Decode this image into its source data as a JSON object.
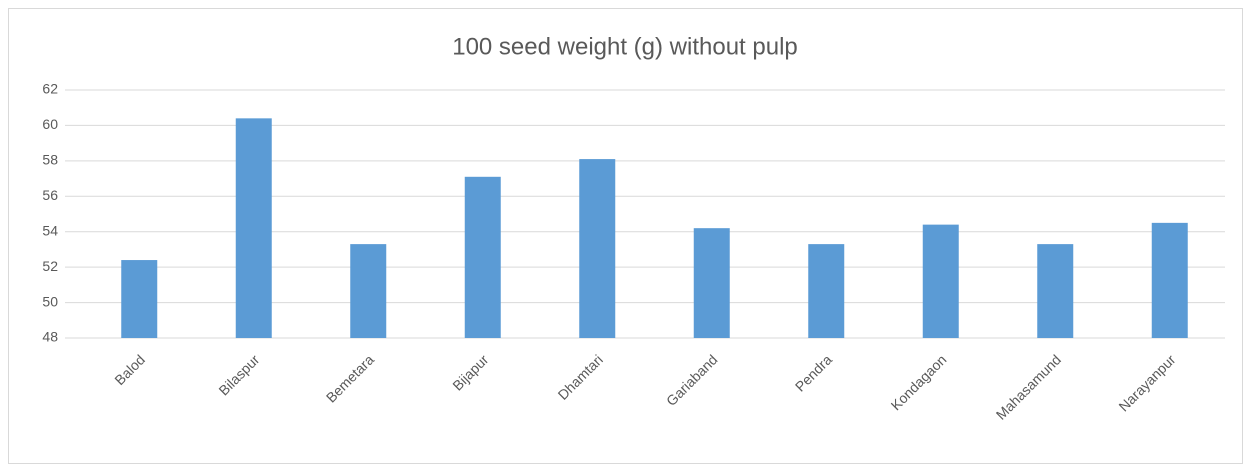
{
  "chart_data": {
    "type": "bar",
    "title": "100 seed weight (g) without pulp",
    "categories": [
      "Balod",
      "Bilaspur",
      "Bemetara",
      "Bijapur",
      "Dhamtari",
      "Gariaband",
      "Pendra",
      "Kondagaon",
      "Mahasamund",
      "Narayanpur"
    ],
    "values": [
      52.4,
      60.4,
      53.3,
      57.1,
      58.1,
      54.2,
      53.3,
      54.4,
      53.3,
      54.5
    ],
    "color": "#5b9bd5",
    "ylim": [
      48,
      62
    ],
    "yticks": [
      48,
      50,
      52,
      54,
      56,
      58,
      60,
      62
    ],
    "grid": true
  }
}
